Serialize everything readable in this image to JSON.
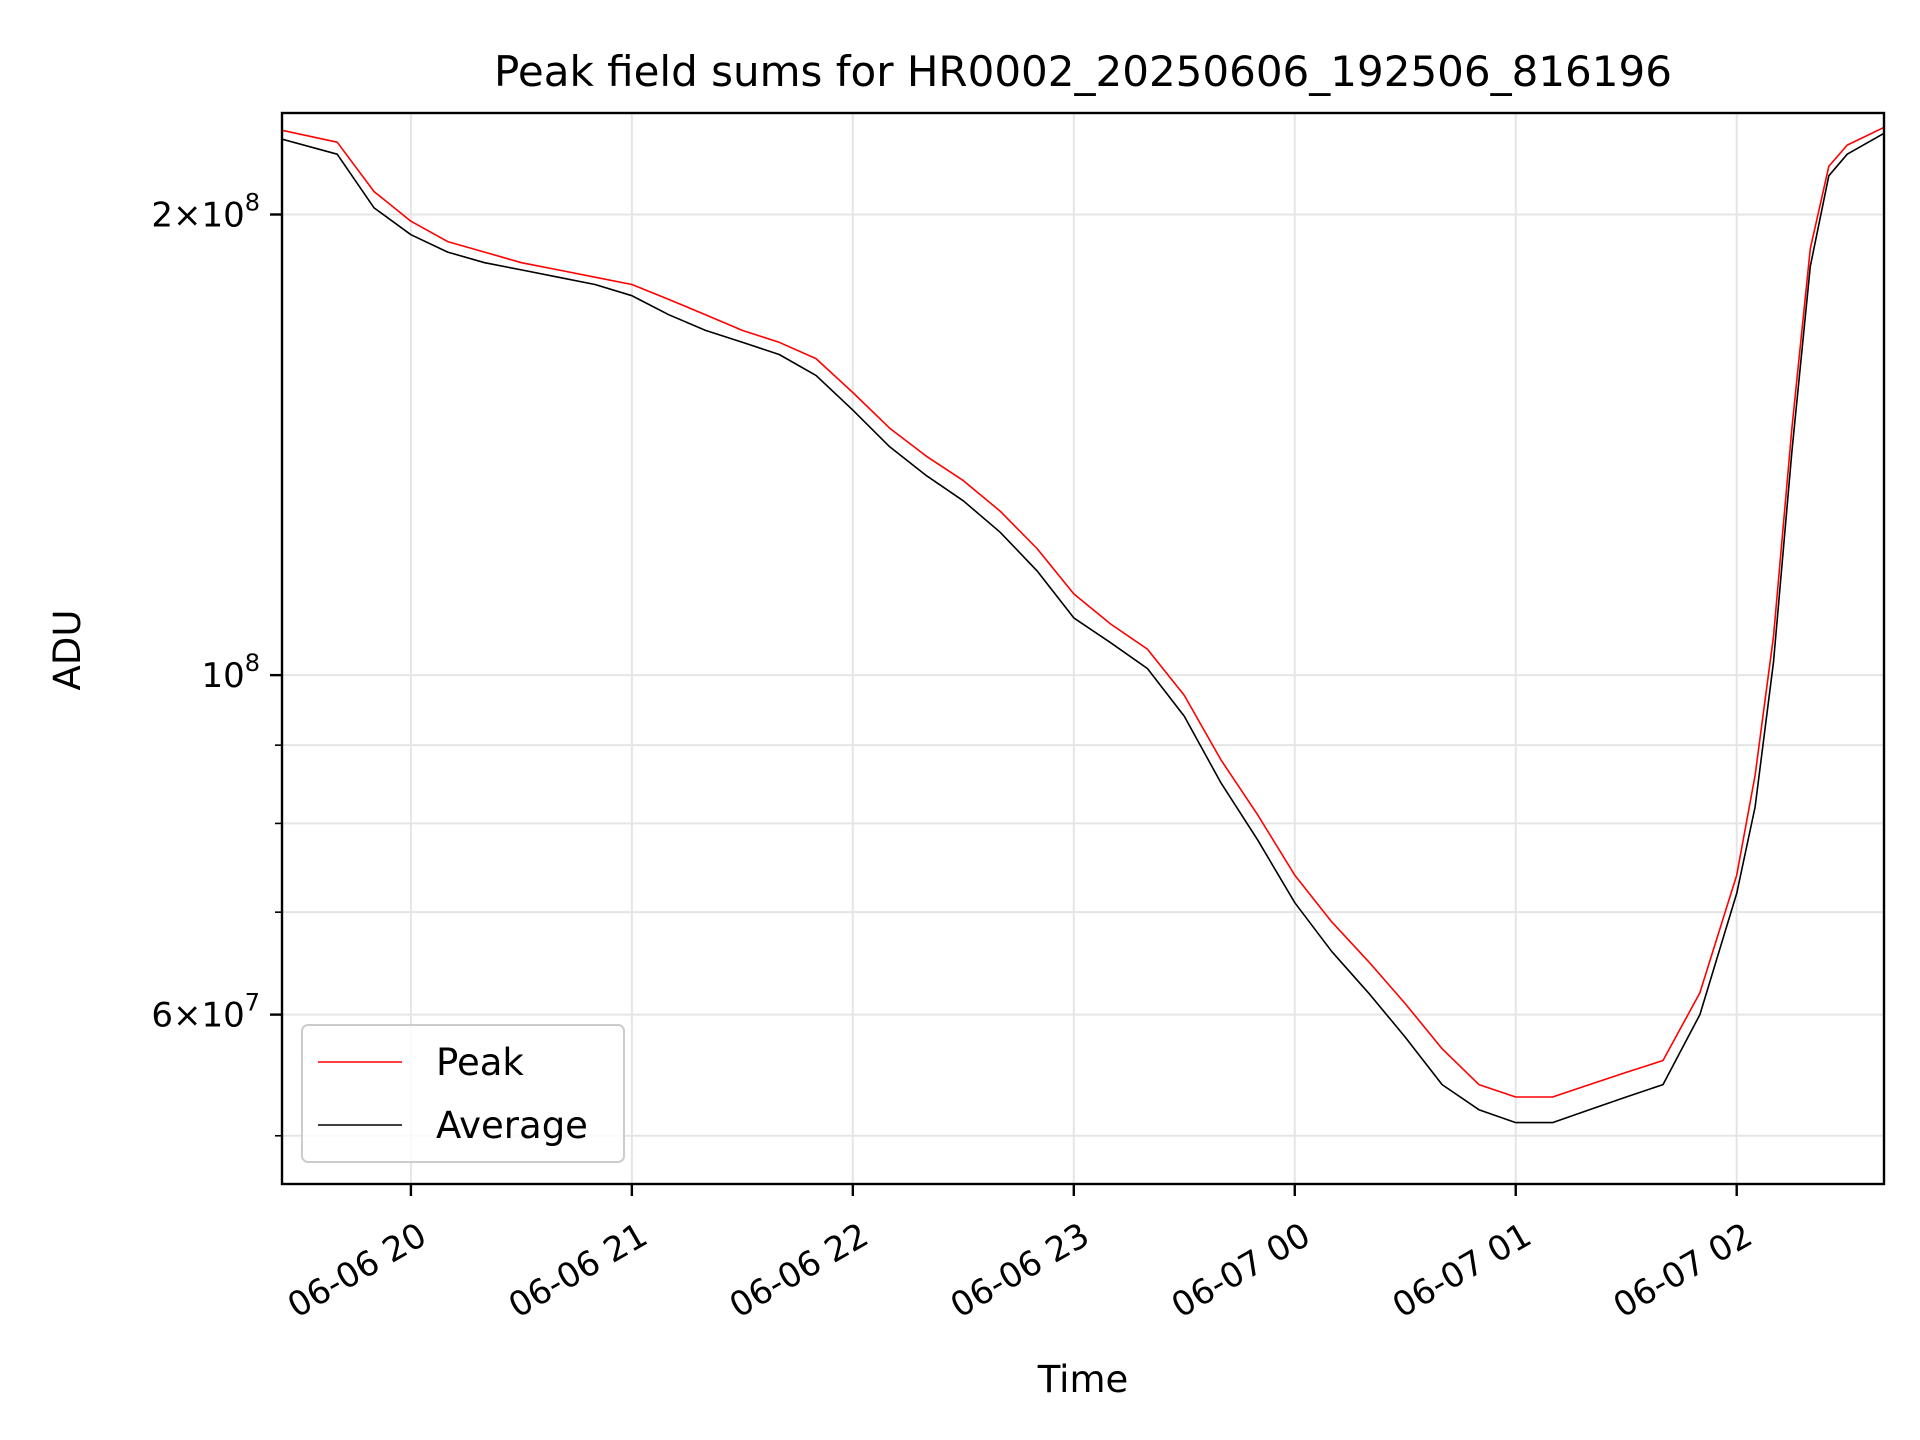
{
  "chart_data": {
    "type": "line",
    "title": "Peak field sums for HR0002_20250606_192506_816196",
    "xlabel": "Time",
    "ylabel": "ADU",
    "yscale": "log",
    "grid": true,
    "legend_position": "lower-left",
    "xlim": [
      "2025-06-06 19:25",
      "2025-06-07 02:40"
    ],
    "ylim": [
      46500000,
      233000000
    ],
    "x_ticks": [
      {
        "value": "2025-06-06 20:00",
        "label": "06-06 20"
      },
      {
        "value": "2025-06-06 21:00",
        "label": "06-06 21"
      },
      {
        "value": "2025-06-06 22:00",
        "label": "06-06 22"
      },
      {
        "value": "2025-06-06 23:00",
        "label": "06-06 23"
      },
      {
        "value": "2025-06-07 00:00",
        "label": "06-07 00"
      },
      {
        "value": "2025-06-07 01:00",
        "label": "06-07 01"
      },
      {
        "value": "2025-06-07 02:00",
        "label": "06-07 02"
      }
    ],
    "y_ticks_major": [
      {
        "value": 200000000,
        "mantissa": "2",
        "exp": "8"
      },
      {
        "value": 100000000,
        "mantissa": "",
        "exp": "8"
      },
      {
        "value": 60000000,
        "mantissa": "6",
        "exp": "7"
      }
    ],
    "y_ticks_minor": [
      50000000,
      70000000,
      80000000,
      90000000
    ],
    "series": [
      {
        "name": "Peak",
        "color": "#ff0000",
        "x": [
          "2025-06-06 19:25",
          "2025-06-06 19:40",
          "2025-06-06 19:50",
          "2025-06-06 20:00",
          "2025-06-06 20:10",
          "2025-06-06 20:20",
          "2025-06-06 20:30",
          "2025-06-06 20:40",
          "2025-06-06 20:50",
          "2025-06-06 21:00",
          "2025-06-06 21:10",
          "2025-06-06 21:20",
          "2025-06-06 21:30",
          "2025-06-06 21:40",
          "2025-06-06 21:50",
          "2025-06-06 22:00",
          "2025-06-06 22:10",
          "2025-06-06 22:20",
          "2025-06-06 22:30",
          "2025-06-06 22:40",
          "2025-06-06 22:50",
          "2025-06-06 23:00",
          "2025-06-06 23:10",
          "2025-06-06 23:20",
          "2025-06-06 23:30",
          "2025-06-06 23:40",
          "2025-06-06 23:50",
          "2025-06-07 00:00",
          "2025-06-07 00:10",
          "2025-06-07 00:20",
          "2025-06-07 00:30",
          "2025-06-07 00:40",
          "2025-06-07 00:50",
          "2025-06-07 01:00",
          "2025-06-07 01:10",
          "2025-06-07 01:20",
          "2025-06-07 01:30",
          "2025-06-07 01:40",
          "2025-06-07 01:50",
          "2025-06-07 02:00",
          "2025-06-07 02:05",
          "2025-06-07 02:10",
          "2025-06-07 02:15",
          "2025-06-07 02:20",
          "2025-06-07 02:25",
          "2025-06-07 02:30",
          "2025-06-07 02:40"
        ],
        "y": [
          227000000,
          223000000,
          207000000,
          198000000,
          192000000,
          189000000,
          186000000,
          184000000,
          182000000,
          180000000,
          176000000,
          172000000,
          168000000,
          165000000,
          161000000,
          153000000,
          145000000,
          139000000,
          134000000,
          128000000,
          121000000,
          113000000,
          108000000,
          104000000,
          97000000,
          88000000,
          81000000,
          74000000,
          69000000,
          65000000,
          61000000,
          57000000,
          54000000,
          53000000,
          53000000,
          54000000,
          55000000,
          56000000,
          62000000,
          74000000,
          86000000,
          106000000,
          145000000,
          190000000,
          215000000,
          222000000,
          228000000
        ]
      },
      {
        "name": "Average",
        "color": "#000000",
        "x": [
          "2025-06-06 19:25",
          "2025-06-06 19:40",
          "2025-06-06 19:50",
          "2025-06-06 20:00",
          "2025-06-06 20:10",
          "2025-06-06 20:20",
          "2025-06-06 20:30",
          "2025-06-06 20:40",
          "2025-06-06 20:50",
          "2025-06-06 21:00",
          "2025-06-06 21:10",
          "2025-06-06 21:20",
          "2025-06-06 21:30",
          "2025-06-06 21:40",
          "2025-06-06 21:50",
          "2025-06-06 22:00",
          "2025-06-06 22:10",
          "2025-06-06 22:20",
          "2025-06-06 22:30",
          "2025-06-06 22:40",
          "2025-06-06 22:50",
          "2025-06-06 23:00",
          "2025-06-06 23:10",
          "2025-06-06 23:20",
          "2025-06-06 23:30",
          "2025-06-06 23:40",
          "2025-06-06 23:50",
          "2025-06-07 00:00",
          "2025-06-07 00:10",
          "2025-06-07 00:20",
          "2025-06-07 00:30",
          "2025-06-07 00:40",
          "2025-06-07 00:50",
          "2025-06-07 01:00",
          "2025-06-07 01:10",
          "2025-06-07 01:20",
          "2025-06-07 01:30",
          "2025-06-07 01:40",
          "2025-06-07 01:50",
          "2025-06-07 02:00",
          "2025-06-07 02:05",
          "2025-06-07 02:10",
          "2025-06-07 02:15",
          "2025-06-07 02:20",
          "2025-06-07 02:25",
          "2025-06-07 02:30",
          "2025-06-07 02:40"
        ],
        "y": [
          224000000,
          219000000,
          202000000,
          194000000,
          189000000,
          186000000,
          184000000,
          182000000,
          180000000,
          177000000,
          172000000,
          168000000,
          165000000,
          162000000,
          157000000,
          149000000,
          141000000,
          135000000,
          130000000,
          124000000,
          117000000,
          109000000,
          105000000,
          101000000,
          94000000,
          85000000,
          78000000,
          71000000,
          66000000,
          62000000,
          58000000,
          54000000,
          52000000,
          51000000,
          51000000,
          52000000,
          53000000,
          54000000,
          60000000,
          72000000,
          82000000,
          102000000,
          140000000,
          185000000,
          212000000,
          219000000,
          226000000
        ]
      }
    ]
  }
}
